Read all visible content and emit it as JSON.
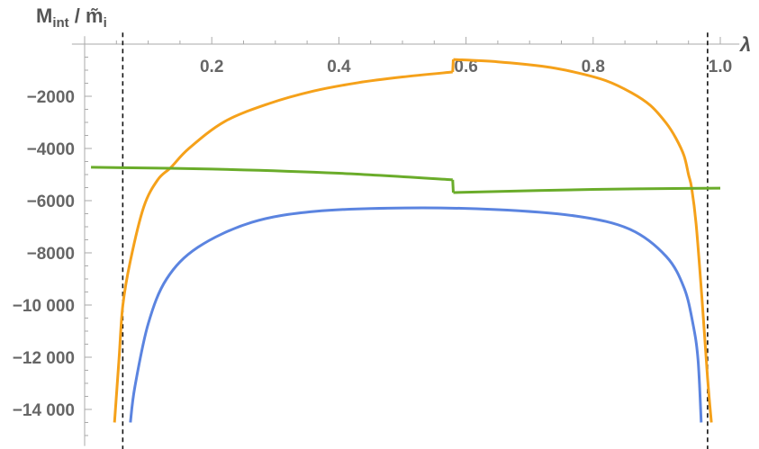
{
  "chart_data": {
    "type": "line",
    "title": "",
    "ylabel": {
      "main": "M",
      "sub": "int",
      "sep": " / ",
      "main2": "m̃",
      "sub2": "i"
    },
    "xlabel": "λ",
    "xlim": [
      -0.02,
      1.03
    ],
    "ylim": [
      -15400,
      300
    ],
    "x_ticks": [
      0.2,
      0.4,
      0.6,
      0.8,
      1.0
    ],
    "x_tick_labels": [
      "0.2",
      "0.4",
      "0.6",
      "0.8",
      "1.0"
    ],
    "y_ticks": [
      -2000,
      -4000,
      -6000,
      -8000,
      -10000,
      -12000,
      -14000
    ],
    "y_tick_labels": [
      "−2000",
      "−4000",
      "−6000",
      "−8000",
      "−10 000",
      "−12 000",
      "−14 000"
    ],
    "grid": false,
    "vertical_dashed_lines": [
      0.06,
      0.98
    ],
    "series": [
      {
        "color": "#f5a11a",
        "segments": [
          [
            [
              0.047,
              -14500
            ],
            [
              0.054,
              -12100
            ],
            [
              0.06,
              -10030
            ],
            [
              0.072,
              -8300
            ],
            [
              0.093,
              -6240
            ],
            [
              0.115,
              -5200
            ],
            [
              0.136,
              -4720
            ],
            [
              0.164,
              -4000
            ],
            [
              0.22,
              -2970
            ],
            [
              0.29,
              -2280
            ],
            [
              0.36,
              -1800
            ],
            [
              0.43,
              -1480
            ],
            [
              0.5,
              -1260
            ],
            [
              0.579,
              -1070
            ]
          ],
          [
            [
              0.58,
              -590
            ],
            [
              0.65,
              -680
            ],
            [
              0.72,
              -850
            ],
            [
              0.77,
              -1070
            ],
            [
              0.82,
              -1400
            ],
            [
              0.86,
              -1860
            ],
            [
              0.89,
              -2350
            ],
            [
              0.915,
              -3030
            ],
            [
              0.93,
              -3600
            ],
            [
              0.943,
              -4280
            ],
            [
              0.95,
              -5000
            ],
            [
              0.955,
              -5520
            ],
            [
              0.962,
              -6900
            ],
            [
              0.971,
              -9690
            ],
            [
              0.98,
              -12800
            ],
            [
              0.986,
              -14500
            ]
          ]
        ]
      },
      {
        "color": "#5b84e0",
        "segments": [
          [
            [
              0.072,
              -14500
            ],
            [
              0.079,
              -13140
            ],
            [
              0.1,
              -10720
            ],
            [
              0.129,
              -9000
            ],
            [
              0.178,
              -7790
            ],
            [
              0.263,
              -6830
            ],
            [
              0.363,
              -6410
            ],
            [
              0.504,
              -6280
            ],
            [
              0.646,
              -6340
            ],
            [
              0.773,
              -6590
            ],
            [
              0.858,
              -7100
            ],
            [
              0.915,
              -8140
            ],
            [
              0.943,
              -9340
            ],
            [
              0.957,
              -10720
            ],
            [
              0.965,
              -12100
            ],
            [
              0.97,
              -14500
            ]
          ]
        ]
      },
      {
        "color": "#6aac2a",
        "segments": [
          [
            [
              0.01,
              -4720
            ],
            [
              0.2,
              -4790
            ],
            [
              0.4,
              -4950
            ],
            [
              0.579,
              -5200
            ]
          ],
          [
            [
              0.58,
              -5690
            ],
            [
              0.8,
              -5570
            ],
            [
              1.0,
              -5520
            ]
          ]
        ]
      }
    ]
  }
}
